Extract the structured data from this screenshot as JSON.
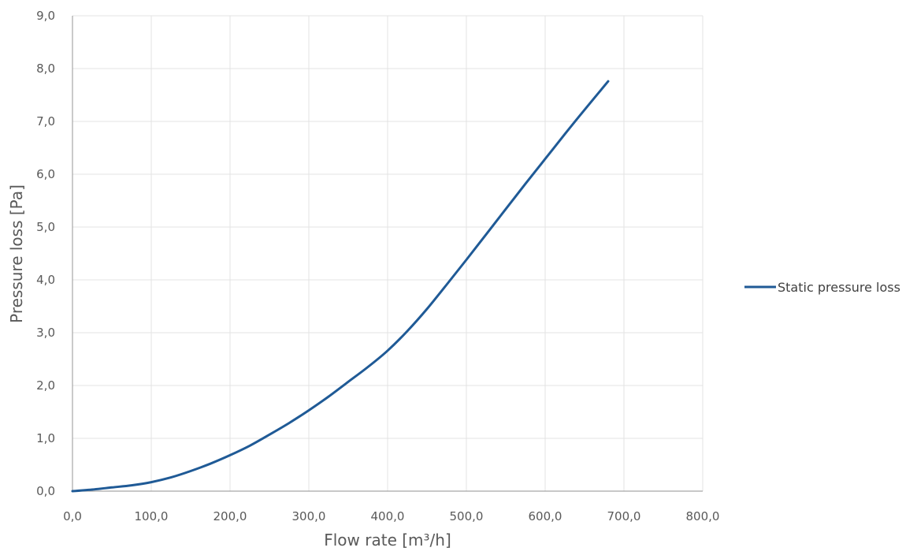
{
  "chart_data": {
    "type": "line",
    "title": "",
    "xlabel": "Flow rate [m³/h]",
    "ylabel": "Pressure loss [Pa]",
    "xlim": [
      0,
      800
    ],
    "ylim": [
      0,
      9
    ],
    "x_ticks": [
      "0,0",
      "100,0",
      "200,0",
      "300,0",
      "400,0",
      "500,0",
      "600,0",
      "700,0",
      "800,0"
    ],
    "y_ticks": [
      "0,0",
      "1,0",
      "2,0",
      "3,0",
      "4,0",
      "5,0",
      "6,0",
      "7,0",
      "8,0",
      "9,0"
    ],
    "grid": true,
    "legend_position": "right",
    "series": [
      {
        "name": "Static pressure loss",
        "color": "#1f5a96",
        "x": [
          0,
          25,
          50,
          75,
          100,
          125,
          150,
          175,
          200,
          225,
          250,
          275,
          300,
          325,
          350,
          375,
          400,
          425,
          450,
          475,
          500,
          525,
          550,
          575,
          600,
          625,
          650,
          680
        ],
        "y": [
          0.0,
          0.03,
          0.07,
          0.11,
          0.17,
          0.26,
          0.38,
          0.52,
          0.68,
          0.86,
          1.07,
          1.29,
          1.53,
          1.79,
          2.07,
          2.35,
          2.66,
          3.03,
          3.45,
          3.91,
          4.38,
          4.86,
          5.34,
          5.82,
          6.29,
          6.76,
          7.22,
          7.76
        ]
      }
    ]
  }
}
